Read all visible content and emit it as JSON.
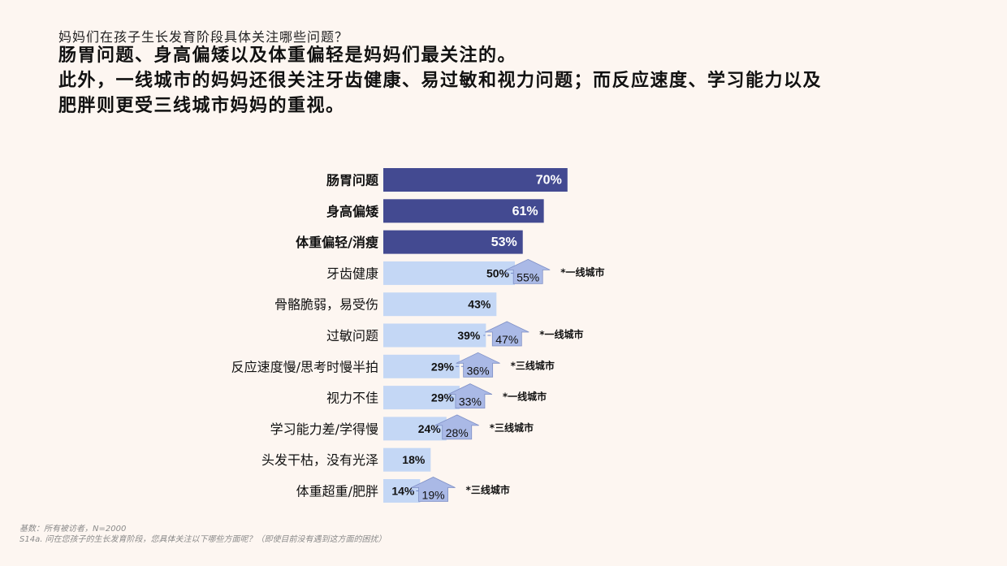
{
  "header": {
    "question": "妈妈们在孩子生长发育阶段具体关注哪些问题？",
    "headline_lines": [
      "肠胃问题、身高偏矮以及体重偏轻是妈妈们最关注的。",
      "此外，一线城市的妈妈还很关注牙齿健康、易过敏和视力问题；而反应速度、学习能力以及",
      "肥胖则更受三线城市妈妈的重视。"
    ]
  },
  "footer": {
    "base": "基数：所有被访者，N=2000",
    "question_note": "S14a. 问在您孩子的生长发育阶段，您具体关注以下哪些方面呢？（即使目前没有遇到这方面的困扰）"
  },
  "colors": {
    "top_bar": "#434a91",
    "other_bar": "#c4d7f5",
    "arrow_fill": "#aab9e6",
    "dash": "#6f86c9"
  },
  "chart_data": {
    "type": "bar",
    "orientation": "horizontal",
    "categories": [
      "肠胃问题",
      "身高偏矮",
      "体重偏轻/消瘦",
      "牙齿健康",
      "骨骼脆弱，易受伤",
      "过敏问题",
      "反应速度慢/思考时慢半拍",
      "视力不佳",
      "学习能力差/学得慢",
      "头发干枯，没有光泽",
      "体重超重/肥胖"
    ],
    "values": [
      70,
      61,
      53,
      50,
      43,
      39,
      29,
      29,
      24,
      18,
      14
    ],
    "value_labels": [
      "70%",
      "61%",
      "53%",
      "50%",
      "43%",
      "39%",
      "29%",
      "29%",
      "24%",
      "18%",
      "14%"
    ],
    "highlight_count": 3,
    "annotations": [
      {
        "category_index": 3,
        "value": 55,
        "label": "55%",
        "tag": "*一线城市"
      },
      {
        "category_index": 5,
        "value": 47,
        "label": "47%",
        "tag": "*一线城市"
      },
      {
        "category_index": 6,
        "value": 36,
        "label": "36%",
        "tag": "*三线城市"
      },
      {
        "category_index": 7,
        "value": 33,
        "label": "33%",
        "tag": "*一线城市"
      },
      {
        "category_index": 8,
        "value": 28,
        "label": "28%",
        "tag": "*三线城市"
      },
      {
        "category_index": 10,
        "value": 19,
        "label": "19%",
        "tag": "*三线城市"
      }
    ]
  }
}
